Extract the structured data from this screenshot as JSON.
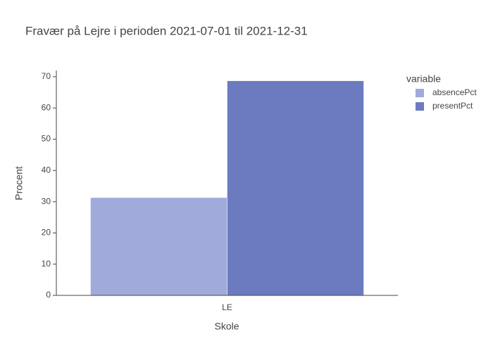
{
  "chart_data": {
    "type": "bar",
    "title": "Fravær på Lejre i perioden 2021-07-01 til 2021-12-31",
    "x_label": "Skole",
    "y_label": "Procent",
    "legend_title": "variable",
    "categories": [
      "LE"
    ],
    "series": [
      {
        "name": "absencePct",
        "color": "#a0aadb",
        "values": [
          31.3
        ]
      },
      {
        "name": "presentPct",
        "color": "#6c7bc0",
        "values": [
          68.7
        ]
      }
    ],
    "ylim": [
      0,
      72
    ],
    "yticks": [
      0,
      10,
      20,
      30,
      40,
      50,
      60,
      70
    ]
  }
}
